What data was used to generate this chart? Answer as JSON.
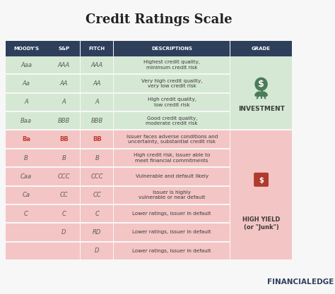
{
  "title": "Credit Ratings Scale",
  "title_fontsize": 13,
  "background_color": "#f7f7f7",
  "header_bg": "#2e3f5c",
  "header_text_color": "#ffffff",
  "header_labels": [
    "MOODY'S",
    "S&P",
    "FITCH",
    "DESCRIPTIONS",
    "GRADE"
  ],
  "investment_bg": "#d5e8d3",
  "highyield_bg": "#f4c5c5",
  "rows": [
    {
      "moodys": "Aaa",
      "sp": "AAA",
      "fitch": "AAA",
      "desc": "Highest credit quality,\nminimum credit risk",
      "grade_type": "investment",
      "text_color_rating": "#5a5a5a",
      "text_bold": false
    },
    {
      "moodys": "Aa",
      "sp": "AA",
      "fitch": "AA",
      "desc": "Very high credit quality,\nvery low credit risk",
      "grade_type": "investment",
      "text_color_rating": "#5a5a5a",
      "text_bold": false
    },
    {
      "moodys": "A",
      "sp": "A",
      "fitch": "A",
      "desc": "High credit quality,\nlow credit risk",
      "grade_type": "investment",
      "text_color_rating": "#5a5a5a",
      "text_bold": false
    },
    {
      "moodys": "Baa",
      "sp": "BBB",
      "fitch": "BBB",
      "desc": "Good credit quality,\nmoderate credit risk",
      "grade_type": "investment",
      "text_color_rating": "#5a5a5a",
      "text_bold": false
    },
    {
      "moodys": "Ba",
      "sp": "BB",
      "fitch": "BB",
      "desc": "Issuer faces adverse conditions and\nuncertainty, substantial credit risk",
      "grade_type": "highyield",
      "text_color_rating": "#c0392b",
      "text_bold": true
    },
    {
      "moodys": "B",
      "sp": "B",
      "fitch": "B",
      "desc": "High credit risk, issuer able to\nmeet financial commitments",
      "grade_type": "highyield",
      "text_color_rating": "#5a5a5a",
      "text_bold": false
    },
    {
      "moodys": "Caa",
      "sp": "CCC",
      "fitch": "CCC",
      "desc": "Vulnerable and default likely",
      "grade_type": "highyield",
      "text_color_rating": "#5a5a5a",
      "text_bold": false
    },
    {
      "moodys": "Ca",
      "sp": "CC",
      "fitch": "CC",
      "desc": "Issuer is highly\nvulnerable or near default",
      "grade_type": "highyield",
      "text_color_rating": "#5a5a5a",
      "text_bold": false
    },
    {
      "moodys": "C",
      "sp": "C",
      "fitch": "C",
      "desc": "Lower ratings, issuer in default",
      "grade_type": "highyield",
      "text_color_rating": "#5a5a5a",
      "text_bold": false
    },
    {
      "moodys": "",
      "sp": "D",
      "fitch": "RD",
      "desc": "Lower ratings, issuer in default",
      "grade_type": "highyield",
      "text_color_rating": "#5a5a5a",
      "text_bold": false
    },
    {
      "moodys": "",
      "sp": "",
      "fitch": "D",
      "desc": "Lower ratings, issuer in default",
      "grade_type": "highyield",
      "text_color_rating": "#5a5a5a",
      "text_bold": false
    }
  ],
  "investment_label": "INVESTMENT",
  "highyield_label": "HIGH YIELD\n(or \"Junk\")",
  "footer_left": "FINANCIAL",
  "footer_right": "EDGE",
  "investment_color": "#4a7c59",
  "highyield_color": "#b03a2e",
  "sep_color": "#ffffff",
  "n_investment_rows": 4
}
